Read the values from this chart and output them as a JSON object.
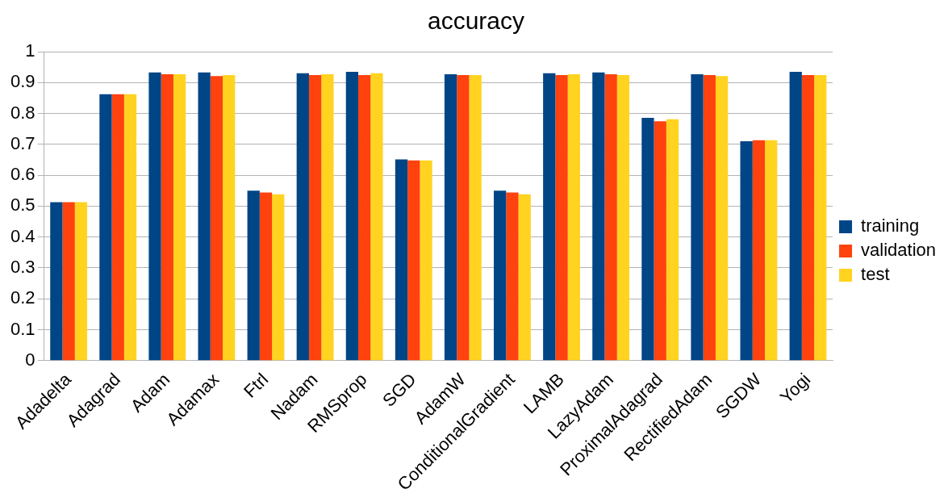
{
  "chart_data": {
    "type": "bar",
    "title": "accuracy",
    "categories": [
      "Adadelta",
      "Adagrad",
      "Adam",
      "Adamax",
      "Ftrl",
      "Nadam",
      "RMSprop",
      "SGD",
      "AdamW",
      "ConditionalGradient",
      "LAMB",
      "LazyAdam",
      "ProximalAdagrad",
      "RectifiedAdam",
      "SGDW",
      "Yogi"
    ],
    "series": [
      {
        "name": "training",
        "color": "#004586",
        "values": [
          0.513,
          0.862,
          0.933,
          0.933,
          0.55,
          0.93,
          0.935,
          0.651,
          0.927,
          0.55,
          0.93,
          0.933,
          0.786,
          0.927,
          0.71,
          0.935
        ]
      },
      {
        "name": "validation",
        "color": "#ff420e",
        "values": [
          0.513,
          0.862,
          0.927,
          0.921,
          0.544,
          0.924,
          0.924,
          0.648,
          0.924,
          0.544,
          0.924,
          0.927,
          0.775,
          0.924,
          0.713,
          0.924
        ]
      },
      {
        "name": "test",
        "color": "#ffd320",
        "values": [
          0.513,
          0.862,
          0.927,
          0.924,
          0.538,
          0.927,
          0.93,
          0.648,
          0.924,
          0.538,
          0.927,
          0.924,
          0.781,
          0.921,
          0.713,
          0.924
        ]
      }
    ],
    "ylim": [
      0,
      1
    ],
    "yticks": [
      0,
      0.1,
      0.2,
      0.3,
      0.4,
      0.5,
      0.6,
      0.7,
      0.8,
      0.9,
      1
    ],
    "grid": "y",
    "legend": "right"
  }
}
